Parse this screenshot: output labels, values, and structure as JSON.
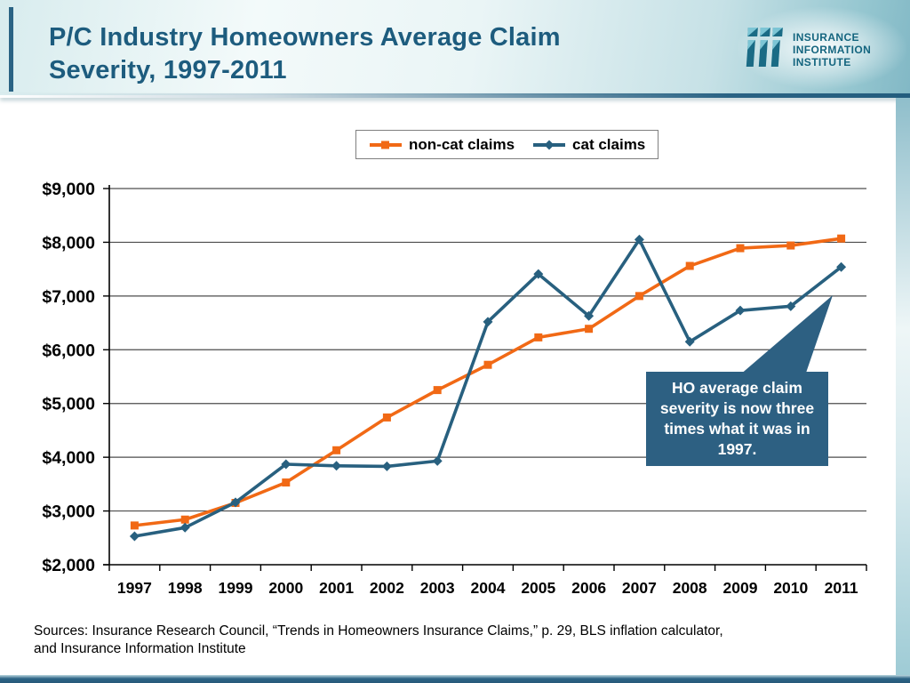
{
  "header": {
    "title_lines": [
      "P/C Industry Homeowners Average Claim",
      "Severity, 1997-2011"
    ],
    "logo_lines": [
      "INSURANCE",
      "INFORMATION",
      "INSTITUTE"
    ]
  },
  "chart_data": {
    "type": "line",
    "title": "P/C Industry Homeowners Average Claim Severity, 1997-2011",
    "categories": [
      "1997",
      "1998",
      "1999",
      "2000",
      "2001",
      "2002",
      "2003",
      "2004",
      "2005",
      "2006",
      "2007",
      "2008",
      "2009",
      "2010",
      "2011"
    ],
    "series": [
      {
        "name": "non-cat claims",
        "color": "#f16915",
        "marker": "square",
        "values": [
          2730,
          2840,
          3150,
          3530,
          4130,
          4740,
          5250,
          5720,
          6230,
          6390,
          7000,
          7560,
          7890,
          7940,
          8070
        ]
      },
      {
        "name": "cat claims",
        "color": "#28607f",
        "marker": "diamond",
        "values": [
          2530,
          2690,
          3160,
          3870,
          3840,
          3830,
          3930,
          6520,
          7410,
          6630,
          8050,
          6150,
          6730,
          6810,
          7540
        ]
      }
    ],
    "xlabel": "",
    "ylabel": "",
    "ylim": [
      2000,
      9000
    ],
    "ytick_step": 1000,
    "y_tick_labels": [
      "$2,000",
      "$3,000",
      "$4,000",
      "$5,000",
      "$6,000",
      "$7,000",
      "$8,000",
      "$9,000"
    ],
    "grid": "horizontal",
    "legend_position": "top"
  },
  "callout": {
    "text": "HO average claim severity is now three times what it was in 1997.",
    "bg_color": "#2d6082",
    "text_color": "#ffffff"
  },
  "sources": {
    "line1": "Sources: Insurance Research Council, “Trends in Homeowners Insurance Claims,” p. 29, BLS inflation calculator,",
    "line2": "and Insurance Information Institute"
  },
  "colors": {
    "title": "#1d5c7e",
    "gridline": "#4d4d4d",
    "axis": "#000000",
    "header_teal": "#2a6384"
  }
}
